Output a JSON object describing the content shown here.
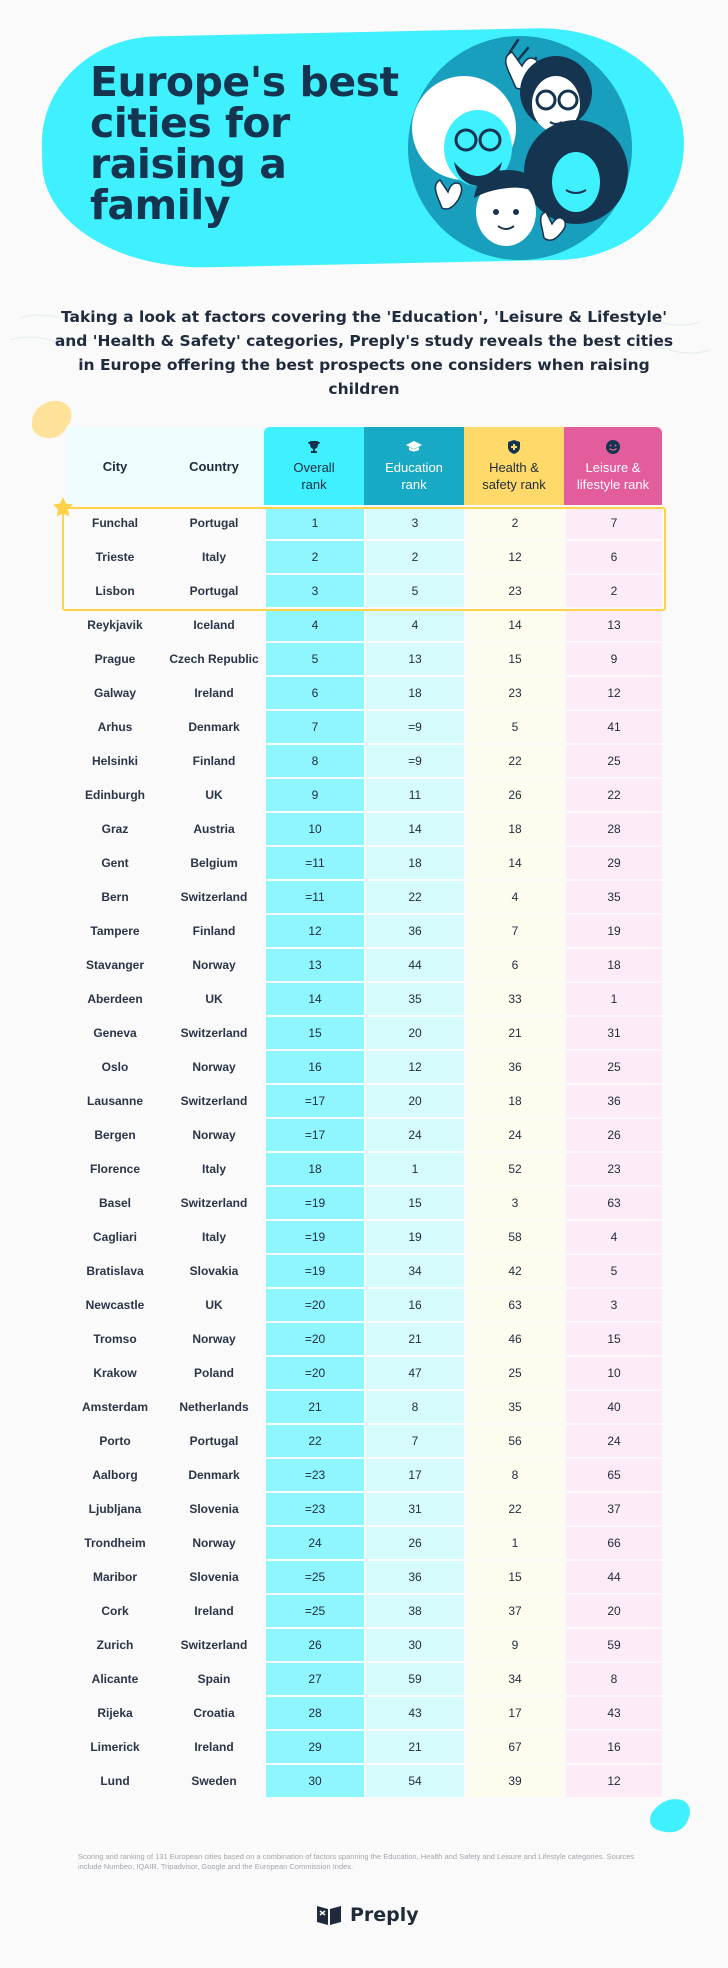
{
  "header": {
    "title": "Europe's best cities for raising a family"
  },
  "subtitle": "Taking a look at factors covering the 'Education', 'Leisure & Lifestyle' and 'Health & Safety' categories, Preply's study reveals the best cities in Europe offering the best prospects one considers when raising children",
  "table": {
    "columns": {
      "city": "City",
      "country": "Country",
      "overall": "Overall rank",
      "education": "Education rank",
      "health": "Health & safety rank",
      "leisure": "Leisure & lifestyle rank"
    },
    "column_icons": {
      "overall": "trophy-icon",
      "education": "graduation-cap-icon",
      "health": "shield-cross-icon",
      "leisure": "smiley-icon"
    },
    "column_colors": {
      "overall": "#3ff0ff",
      "education": "#18a9c4",
      "health": "#ffda6b",
      "leisure": "#e35c9b"
    },
    "highlight_top": 3,
    "rows": [
      [
        "Funchal",
        "Portugal",
        "1",
        "3",
        "2",
        "7"
      ],
      [
        "Trieste",
        "Italy",
        "2",
        "2",
        "12",
        "6"
      ],
      [
        "Lisbon",
        "Portugal",
        "3",
        "5",
        "23",
        "2"
      ],
      [
        "Reykjavik",
        "Iceland",
        "4",
        "4",
        "14",
        "13"
      ],
      [
        "Prague",
        "Czech Republic",
        "5",
        "13",
        "15",
        "9"
      ],
      [
        "Galway",
        "Ireland",
        "6",
        "18",
        "23",
        "12"
      ],
      [
        "Arhus",
        "Denmark",
        "7",
        "=9",
        "5",
        "41"
      ],
      [
        "Helsinki",
        "Finland",
        "8",
        "=9",
        "22",
        "25"
      ],
      [
        "Edinburgh",
        "UK",
        "9",
        "11",
        "26",
        "22"
      ],
      [
        "Graz",
        "Austria",
        "10",
        "14",
        "18",
        "28"
      ],
      [
        "Gent",
        "Belgium",
        "=11",
        "18",
        "14",
        "29"
      ],
      [
        "Bern",
        "Switzerland",
        "=11",
        "22",
        "4",
        "35"
      ],
      [
        "Tampere",
        "Finland",
        "12",
        "36",
        "7",
        "19"
      ],
      [
        "Stavanger",
        "Norway",
        "13",
        "44",
        "6",
        "18"
      ],
      [
        "Aberdeen",
        "UK",
        "14",
        "35",
        "33",
        "1"
      ],
      [
        "Geneva",
        "Switzerland",
        "15",
        "20",
        "21",
        "31"
      ],
      [
        "Oslo",
        "Norway",
        "16",
        "12",
        "36",
        "25"
      ],
      [
        "Lausanne",
        "Switzerland",
        "=17",
        "20",
        "18",
        "36"
      ],
      [
        "Bergen",
        "Norway",
        "=17",
        "24",
        "24",
        "26"
      ],
      [
        "Florence",
        "Italy",
        "18",
        "1",
        "52",
        "23"
      ],
      [
        "Basel",
        "Switzerland",
        "=19",
        "15",
        "3",
        "63"
      ],
      [
        "Cagliari",
        "Italy",
        "=19",
        "19",
        "58",
        "4"
      ],
      [
        "Bratislava",
        "Slovakia",
        "=19",
        "34",
        "42",
        "5"
      ],
      [
        "Newcastle",
        "UK",
        "=20",
        "16",
        "63",
        "3"
      ],
      [
        "Tromso",
        "Norway",
        "=20",
        "21",
        "46",
        "15"
      ],
      [
        "Krakow",
        "Poland",
        "=20",
        "47",
        "25",
        "10"
      ],
      [
        "Amsterdam",
        "Netherlands",
        "21",
        "8",
        "35",
        "40"
      ],
      [
        "Porto",
        "Portugal",
        "22",
        "7",
        "56",
        "24"
      ],
      [
        "Aalborg",
        "Denmark",
        "=23",
        "17",
        "8",
        "65"
      ],
      [
        "Ljubljana",
        "Slovenia",
        "=23",
        "31",
        "22",
        "37"
      ],
      [
        "Trondheim",
        "Norway",
        "24",
        "26",
        "1",
        "66"
      ],
      [
        "Maribor",
        "Slovenia",
        "=25",
        "36",
        "15",
        "44"
      ],
      [
        "Cork",
        "Ireland",
        "=25",
        "38",
        "37",
        "20"
      ],
      [
        "Zurich",
        "Switzerland",
        "26",
        "30",
        "9",
        "59"
      ],
      [
        "Alicante",
        "Spain",
        "27",
        "59",
        "34",
        "8"
      ],
      [
        "Rijeka",
        "Croatia",
        "28",
        "43",
        "17",
        "43"
      ],
      [
        "Limerick",
        "Ireland",
        "29",
        "21",
        "67",
        "16"
      ],
      [
        "Lund",
        "Sweden",
        "30",
        "54",
        "39",
        "12"
      ]
    ]
  },
  "footnote": "Scoring and ranking of 131 European cities based on a combination of factors spanning the Education, Health and Safety and Leisure and Lifestyle categories. Sources include Numbeo, IQAIR, Tripadvisor, Google and the European Commission Index.",
  "brand": {
    "name": "Preply",
    "logo_icon": "preply-logo-icon"
  }
}
